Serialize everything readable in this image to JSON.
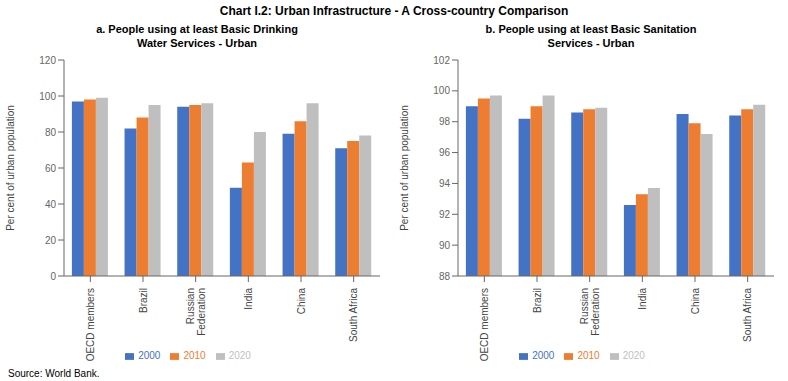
{
  "title": "Chart I.2: Urban Infrastructure - A Cross-country Comparison",
  "annotations": [
    "Source: World Bank."
  ],
  "chart_data": [
    {
      "type": "bar",
      "title": "a. People using at least Basic Drinking\nWater Services - Urban",
      "ylabel": "Per cent of urban population",
      "categories": [
        "OECD members",
        "Brazil",
        "Russian\nFederation",
        "India",
        "China",
        "South Africa"
      ],
      "series": [
        {
          "name": "2000",
          "color": "#4472c4",
          "values": [
            97,
            82,
            94,
            49,
            79,
            71
          ]
        },
        {
          "name": "2010",
          "color": "#ed7d31",
          "values": [
            98,
            88,
            95,
            63,
            86,
            75
          ]
        },
        {
          "name": "2020",
          "color": "#bfbfbf",
          "values": [
            99,
            95,
            96,
            80,
            96,
            78
          ]
        }
      ],
      "ylim": [
        0,
        120
      ],
      "yticks": [
        0,
        20,
        40,
        60,
        80,
        100,
        120
      ],
      "grid": false,
      "legend": "bottom"
    },
    {
      "type": "bar",
      "title": "b. People using at least Basic Sanitation\nServices - Urban",
      "ylabel": "Per cent of urban population",
      "categories": [
        "OECD members",
        "Brazil",
        "Russian\nFederation",
        "India",
        "China",
        "South Africa"
      ],
      "series": [
        {
          "name": "2000",
          "color": "#4472c4",
          "values": [
            99.0,
            98.2,
            98.6,
            92.6,
            98.5,
            98.4
          ]
        },
        {
          "name": "2010",
          "color": "#ed7d31",
          "values": [
            99.5,
            99.0,
            98.8,
            93.3,
            97.9,
            98.8
          ]
        },
        {
          "name": "2020",
          "color": "#bfbfbf",
          "values": [
            99.7,
            99.7,
            98.9,
            93.7,
            97.2,
            99.1
          ]
        }
      ],
      "ylim": [
        88,
        102
      ],
      "yticks": [
        88,
        90,
        92,
        94,
        96,
        98,
        100,
        102
      ],
      "grid": false,
      "legend": "bottom"
    }
  ]
}
